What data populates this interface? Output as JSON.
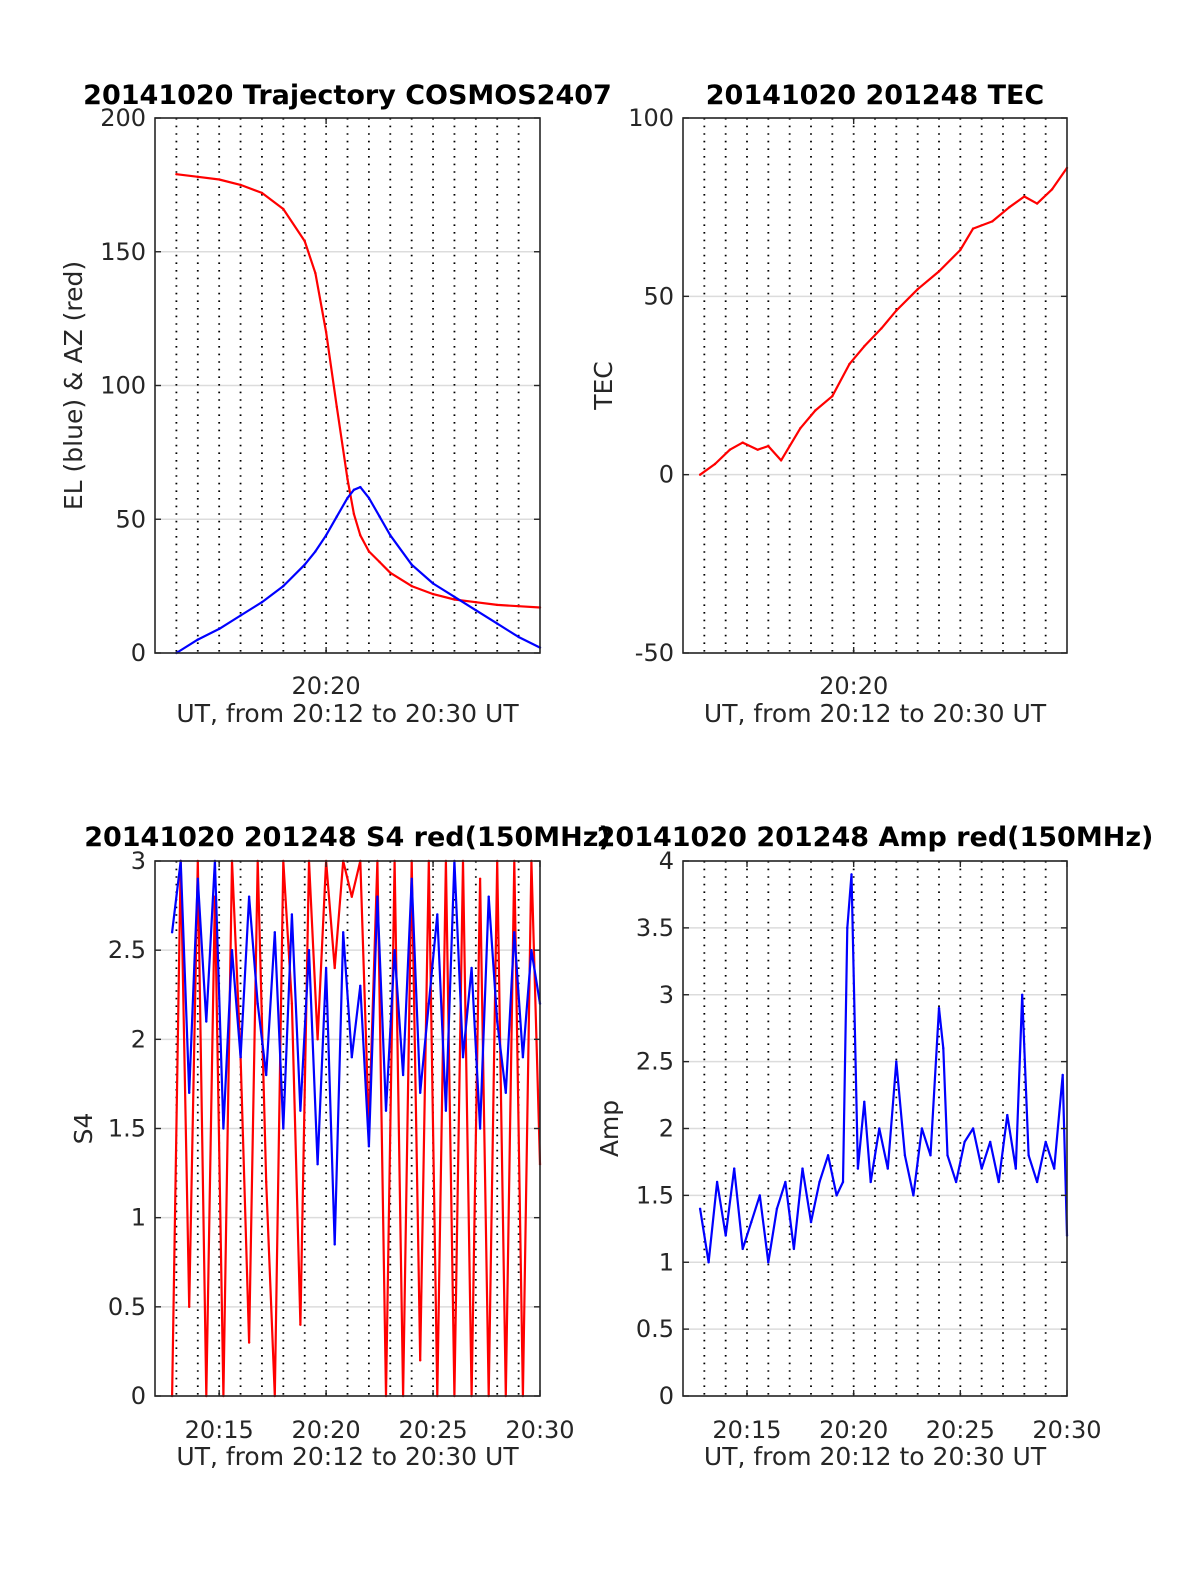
{
  "chart_data": [
    {
      "type": "line",
      "title": "20141020 Trajectory COSMOS2407",
      "xlabel": "UT, from 20:12 to 20:30 UT",
      "ylabel": "EL (blue) & AZ (red)",
      "xlim": [
        12,
        30
      ],
      "ylim": [
        0,
        200
      ],
      "yticks": [
        0,
        50,
        100,
        150,
        200
      ],
      "xticks": [
        20
      ],
      "xticklabels": [
        "20:20"
      ],
      "grid": true,
      "series": [
        {
          "color": "#ff0000",
          "x": [
            13.0,
            14.0,
            15.0,
            16.0,
            17.0,
            18.0,
            19.0,
            19.5,
            20.0,
            20.5,
            21.0,
            21.3,
            21.6,
            22.0,
            22.5,
            23.0,
            24.0,
            25.0,
            26.0,
            27.0,
            28.0,
            29.0,
            30.0
          ],
          "y": [
            179,
            178,
            177,
            175,
            172,
            166,
            154,
            142,
            120,
            92,
            65,
            52,
            44,
            38,
            34,
            30,
            25,
            22,
            20,
            19,
            18,
            17.5,
            17
          ]
        },
        {
          "color": "#0000ff",
          "x": [
            13.0,
            14.0,
            15.0,
            16.0,
            17.0,
            18.0,
            19.0,
            19.5,
            20.0,
            20.5,
            21.0,
            21.3,
            21.6,
            22.0,
            22.5,
            23.0,
            24.0,
            25.0,
            26.0,
            27.0,
            28.0,
            29.0,
            30.0
          ],
          "y": [
            0,
            5,
            9,
            14,
            19,
            25,
            33,
            38,
            44,
            51,
            58,
            61,
            62,
            58,
            51,
            44,
            33,
            26,
            21,
            16,
            11,
            6,
            2
          ]
        }
      ]
    },
    {
      "type": "line",
      "title": "20141020 201248 TEC",
      "xlabel": "UT, from 20:12 to 20:30 UT",
      "ylabel": "TEC",
      "xlim": [
        12,
        30
      ],
      "ylim": [
        -50,
        100
      ],
      "yticks": [
        -50,
        0,
        50,
        100
      ],
      "xticks": [
        20
      ],
      "xticklabels": [
        "20:20"
      ],
      "grid": true,
      "series": [
        {
          "color": "#ff0000",
          "x": [
            12.8,
            13.5,
            14.2,
            14.8,
            15.5,
            16.0,
            16.6,
            17.5,
            18.2,
            19.0,
            19.8,
            20.5,
            21.3,
            22.0,
            23.0,
            24.0,
            25.0,
            25.6,
            26.5,
            27.3,
            28.0,
            28.6,
            29.3,
            30.0
          ],
          "y": [
            0,
            3,
            7,
            9,
            7,
            8,
            4,
            13,
            18,
            22,
            31,
            36,
            41,
            46,
            52,
            57,
            63,
            69,
            71,
            75,
            78,
            76,
            80,
            86
          ]
        }
      ]
    },
    {
      "type": "line",
      "title": "20141020 201248 S4 red(150MHz)",
      "xlabel": "UT, from 20:12 to 20:30 UT",
      "ylabel": "S4",
      "xlim": [
        12,
        30
      ],
      "ylim": [
        0,
        3
      ],
      "yticks": [
        0,
        0.5,
        1,
        1.5,
        2,
        2.5,
        3
      ],
      "xticks": [
        15,
        20,
        25,
        30
      ],
      "xticklabels": [
        "20:15",
        "20:20",
        "20:25",
        "20:30"
      ],
      "grid": true,
      "series": [
        {
          "color": "#ff0000",
          "x": [
            12.8,
            13.2,
            13.6,
            14.0,
            14.4,
            14.8,
            15.2,
            15.6,
            16.0,
            16.4,
            16.8,
            17.2,
            17.6,
            18.0,
            18.4,
            18.8,
            19.2,
            19.6,
            20.0,
            20.4,
            20.8,
            21.2,
            21.6,
            22.0,
            22.4,
            22.8,
            23.2,
            23.6,
            24.0,
            24.4,
            24.8,
            25.2,
            25.6,
            26.0,
            26.4,
            26.8,
            27.2,
            27.6,
            28.0,
            28.4,
            28.8,
            29.2,
            29.6,
            30.0
          ],
          "y": [
            0,
            3,
            0.5,
            3,
            0,
            2.8,
            0,
            3,
            1.9,
            0.3,
            3,
            1.2,
            0,
            3,
            2.2,
            0.4,
            3,
            2.0,
            3,
            2.4,
            3,
            2.8,
            3,
            1.5,
            3,
            0,
            3,
            0,
            3,
            0.2,
            3,
            0,
            3,
            0,
            3,
            0,
            2.9,
            0,
            3,
            0,
            3,
            0,
            3,
            1.3
          ]
        },
        {
          "color": "#0000ff",
          "x": [
            12.8,
            13.2,
            13.6,
            14.0,
            14.4,
            14.8,
            15.2,
            15.6,
            16.0,
            16.4,
            16.8,
            17.2,
            17.6,
            18.0,
            18.4,
            18.8,
            19.2,
            19.6,
            20.0,
            20.4,
            20.8,
            21.2,
            21.6,
            22.0,
            22.4,
            22.8,
            23.2,
            23.6,
            24.0,
            24.4,
            24.8,
            25.2,
            25.6,
            26.0,
            26.4,
            26.8,
            27.2,
            27.6,
            28.0,
            28.4,
            28.8,
            29.2,
            29.6,
            30.0
          ],
          "y": [
            2.6,
            3,
            1.7,
            2.9,
            2.1,
            3,
            1.5,
            2.5,
            1.9,
            2.8,
            2.2,
            1.8,
            2.6,
            1.5,
            2.7,
            1.6,
            2.5,
            1.3,
            2.4,
            0.85,
            2.6,
            1.9,
            2.3,
            1.4,
            2.8,
            1.6,
            2.5,
            1.8,
            2.9,
            1.7,
            2.2,
            2.7,
            1.6,
            3,
            1.9,
            2.4,
            1.5,
            2.8,
            2.1,
            1.7,
            2.6,
            1.9,
            2.5,
            2.2
          ]
        }
      ]
    },
    {
      "type": "line",
      "title": "20141020 201248 Amp red(150MHz)",
      "xlabel": "UT, from 20:12 to 20:30 UT",
      "ylabel": "Amp",
      "xlim": [
        12,
        30
      ],
      "ylim": [
        0,
        4
      ],
      "yticks": [
        0,
        0.5,
        1,
        1.5,
        2,
        2.5,
        3,
        3.5,
        4
      ],
      "xticks": [
        15,
        20,
        25,
        30
      ],
      "xticklabels": [
        "20:15",
        "20:20",
        "20:25",
        "20:30"
      ],
      "grid": true,
      "series": [
        {
          "color": "#0000ff",
          "x": [
            12.8,
            13.2,
            13.6,
            14.0,
            14.4,
            14.8,
            15.2,
            15.6,
            16.0,
            16.4,
            16.8,
            17.2,
            17.6,
            18.0,
            18.4,
            18.8,
            19.2,
            19.5,
            19.7,
            19.9,
            20.2,
            20.5,
            20.8,
            21.2,
            21.6,
            22.0,
            22.4,
            22.8,
            23.2,
            23.6,
            24.0,
            24.2,
            24.4,
            24.8,
            25.2,
            25.6,
            26.0,
            26.4,
            26.8,
            27.2,
            27.6,
            27.9,
            28.2,
            28.6,
            29.0,
            29.4,
            29.8,
            30.0
          ],
          "y": [
            1.4,
            1.0,
            1.6,
            1.2,
            1.7,
            1.1,
            1.3,
            1.5,
            1.0,
            1.4,
            1.6,
            1.1,
            1.7,
            1.3,
            1.6,
            1.8,
            1.5,
            1.6,
            3.5,
            3.9,
            1.7,
            2.2,
            1.6,
            2.0,
            1.7,
            2.5,
            1.8,
            1.5,
            2.0,
            1.8,
            2.9,
            2.6,
            1.8,
            1.6,
            1.9,
            2.0,
            1.7,
            1.9,
            1.6,
            2.1,
            1.7,
            3.0,
            1.8,
            1.6,
            1.9,
            1.7,
            2.4,
            1.2
          ]
        }
      ]
    }
  ]
}
